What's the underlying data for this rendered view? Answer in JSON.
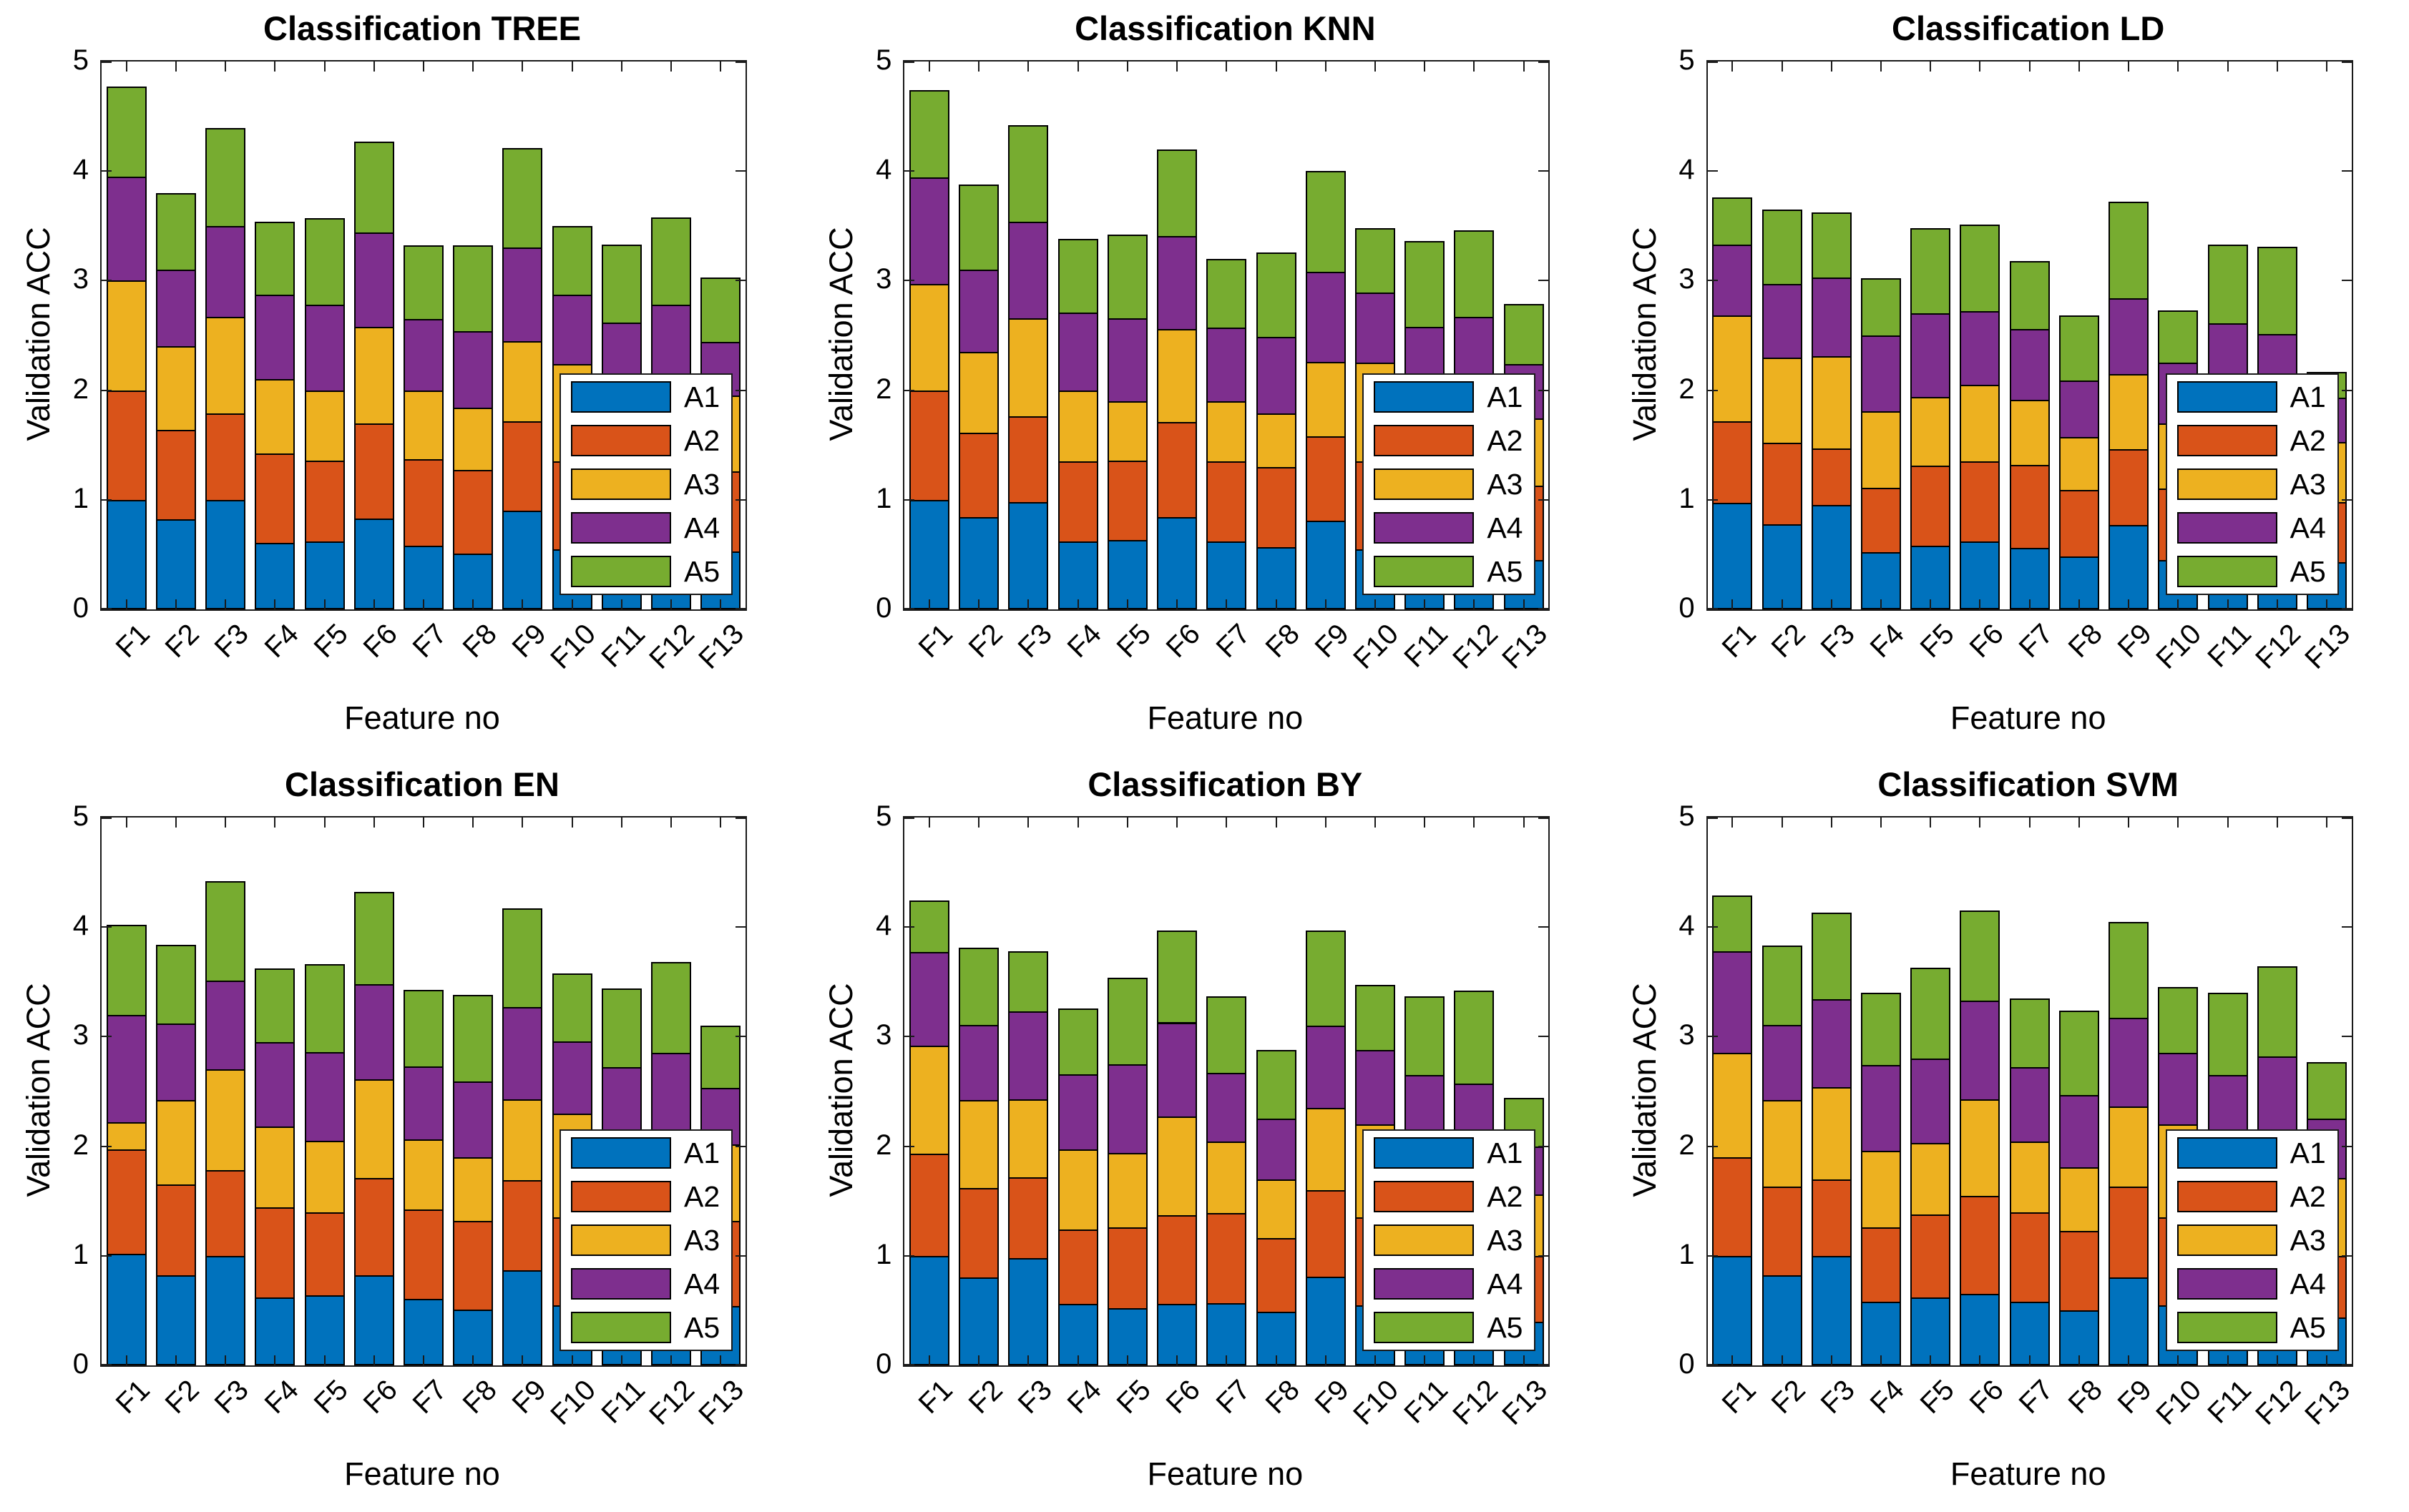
{
  "figure": {
    "background": "#ffffff",
    "series_colors": [
      "#0072BD",
      "#D95319",
      "#EDB120",
      "#7E2F8E",
      "#77AC30"
    ],
    "bar_edge_color": "#000000",
    "axis_color": "#1a1a1a",
    "yticks": [
      0,
      1,
      2,
      3,
      4,
      5
    ],
    "legend_labels": [
      "A1",
      "A2",
      "A3",
      "A4",
      "A5"
    ]
  },
  "chart_data": [
    {
      "type": "bar",
      "stacked": true,
      "grid": false,
      "title": "Classification TREE",
      "xlabel": "Feature no",
      "ylabel": "Validation ACC",
      "ylim": [
        0,
        5
      ],
      "legend_position": "lower-right",
      "categories": [
        "F1",
        "F2",
        "F3",
        "F4",
        "F5",
        "F6",
        "F7",
        "F8",
        "F9",
        "F10",
        "F11",
        "F12",
        "F13"
      ],
      "series": [
        {
          "name": "A1",
          "values": [
            1.0,
            0.82,
            1.0,
            0.61,
            0.62,
            0.83,
            0.58,
            0.51,
            0.9,
            0.55,
            0.52,
            0.55,
            0.53
          ]
        },
        {
          "name": "A2",
          "values": [
            1.0,
            0.82,
            0.79,
            0.81,
            0.74,
            0.87,
            0.79,
            0.76,
            0.82,
            0.8,
            0.78,
            0.8,
            0.73
          ]
        },
        {
          "name": "A3",
          "values": [
            1.0,
            0.76,
            0.88,
            0.68,
            0.64,
            0.88,
            0.63,
            0.57,
            0.73,
            0.89,
            0.65,
            0.7,
            0.69
          ]
        },
        {
          "name": "A4",
          "values": [
            0.95,
            0.7,
            0.83,
            0.77,
            0.78,
            0.86,
            0.65,
            0.7,
            0.85,
            0.63,
            0.67,
            0.73,
            0.49
          ]
        },
        {
          "name": "A5",
          "values": [
            0.82,
            0.7,
            0.89,
            0.67,
            0.79,
            0.83,
            0.67,
            0.78,
            0.91,
            0.63,
            0.71,
            0.8,
            0.59
          ]
        }
      ]
    },
    {
      "type": "bar",
      "stacked": true,
      "grid": false,
      "title": "Classification KNN",
      "xlabel": "Feature no",
      "ylabel": "Validation ACC",
      "ylim": [
        0,
        5
      ],
      "legend_position": "lower-right",
      "categories": [
        "F1",
        "F2",
        "F3",
        "F4",
        "F5",
        "F6",
        "F7",
        "F8",
        "F9",
        "F10",
        "F11",
        "F12",
        "F13"
      ],
      "series": [
        {
          "name": "A1",
          "values": [
            1.0,
            0.84,
            0.98,
            0.62,
            0.63,
            0.84,
            0.62,
            0.57,
            0.81,
            0.55,
            0.52,
            0.55,
            0.45
          ]
        },
        {
          "name": "A2",
          "values": [
            1.0,
            0.77,
            0.78,
            0.73,
            0.73,
            0.87,
            0.73,
            0.73,
            0.77,
            0.8,
            0.78,
            0.8,
            0.68
          ]
        },
        {
          "name": "A3",
          "values": [
            0.97,
            0.74,
            0.9,
            0.65,
            0.54,
            0.85,
            0.55,
            0.49,
            0.68,
            0.9,
            0.65,
            0.7,
            0.61
          ]
        },
        {
          "name": "A4",
          "values": [
            0.97,
            0.75,
            0.88,
            0.71,
            0.76,
            0.85,
            0.67,
            0.7,
            0.82,
            0.64,
            0.63,
            0.62,
            0.5
          ]
        },
        {
          "name": "A5",
          "values": [
            0.8,
            0.78,
            0.88,
            0.67,
            0.76,
            0.79,
            0.63,
            0.77,
            0.92,
            0.59,
            0.78,
            0.79,
            0.55
          ]
        }
      ]
    },
    {
      "type": "bar",
      "stacked": true,
      "grid": false,
      "title": "Classification LD",
      "xlabel": "Feature no",
      "ylabel": "Validation ACC",
      "ylim": [
        0,
        5
      ],
      "legend_position": "lower-right",
      "categories": [
        "F1",
        "F2",
        "F3",
        "F4",
        "F5",
        "F6",
        "F7",
        "F8",
        "F9",
        "F10",
        "F11",
        "F12",
        "F13"
      ],
      "series": [
        {
          "name": "A1",
          "values": [
            0.97,
            0.78,
            0.95,
            0.52,
            0.58,
            0.62,
            0.56,
            0.48,
            0.77,
            0.45,
            0.52,
            0.5,
            0.43
          ]
        },
        {
          "name": "A2",
          "values": [
            0.75,
            0.74,
            0.52,
            0.59,
            0.73,
            0.73,
            0.76,
            0.61,
            0.69,
            0.65,
            0.76,
            0.75,
            0.55
          ]
        },
        {
          "name": "A3",
          "values": [
            0.96,
            0.78,
            0.84,
            0.7,
            0.63,
            0.7,
            0.59,
            0.48,
            0.69,
            0.6,
            0.62,
            0.65,
            0.55
          ]
        },
        {
          "name": "A4",
          "values": [
            0.65,
            0.67,
            0.72,
            0.69,
            0.76,
            0.67,
            0.65,
            0.52,
            0.69,
            0.55,
            0.71,
            0.61,
            0.4
          ]
        },
        {
          "name": "A5",
          "values": [
            0.43,
            0.68,
            0.59,
            0.52,
            0.78,
            0.79,
            0.62,
            0.59,
            0.88,
            0.48,
            0.72,
            0.8,
            0.24
          ]
        }
      ]
    },
    {
      "type": "bar",
      "stacked": true,
      "grid": false,
      "title": "Classification EN",
      "xlabel": "Feature no",
      "ylabel": "Validation ACC",
      "ylim": [
        0,
        5
      ],
      "legend_position": "lower-right",
      "categories": [
        "F1",
        "F2",
        "F3",
        "F4",
        "F5",
        "F6",
        "F7",
        "F8",
        "F9",
        "F10",
        "F11",
        "F12",
        "F13"
      ],
      "series": [
        {
          "name": "A1",
          "values": [
            1.02,
            0.82,
            1.0,
            0.62,
            0.64,
            0.82,
            0.61,
            0.51,
            0.87,
            0.55,
            0.52,
            0.55,
            0.54
          ]
        },
        {
          "name": "A2",
          "values": [
            0.95,
            0.83,
            0.78,
            0.82,
            0.76,
            0.89,
            0.81,
            0.81,
            0.82,
            0.8,
            0.78,
            0.83,
            0.78
          ]
        },
        {
          "name": "A3",
          "values": [
            0.25,
            0.77,
            0.92,
            0.74,
            0.65,
            0.9,
            0.64,
            0.58,
            0.74,
            0.95,
            0.7,
            0.72,
            0.7
          ]
        },
        {
          "name": "A4",
          "values": [
            0.98,
            0.7,
            0.81,
            0.77,
            0.81,
            0.87,
            0.67,
            0.69,
            0.84,
            0.66,
            0.72,
            0.75,
            0.51
          ]
        },
        {
          "name": "A5",
          "values": [
            0.82,
            0.72,
            0.91,
            0.67,
            0.8,
            0.84,
            0.7,
            0.79,
            0.9,
            0.62,
            0.72,
            0.83,
            0.57
          ]
        }
      ]
    },
    {
      "type": "bar",
      "stacked": true,
      "grid": false,
      "title": "Classification BY",
      "xlabel": "Feature no",
      "ylabel": "Validation ACC",
      "ylim": [
        0,
        5
      ],
      "legend_position": "lower-right",
      "categories": [
        "F1",
        "F2",
        "F3",
        "F4",
        "F5",
        "F6",
        "F7",
        "F8",
        "F9",
        "F10",
        "F11",
        "F12",
        "F13"
      ],
      "series": [
        {
          "name": "A1",
          "values": [
            1.0,
            0.8,
            0.98,
            0.56,
            0.52,
            0.56,
            0.57,
            0.49,
            0.81,
            0.55,
            0.52,
            0.52,
            0.4
          ]
        },
        {
          "name": "A2",
          "values": [
            0.93,
            0.82,
            0.74,
            0.68,
            0.74,
            0.81,
            0.82,
            0.67,
            0.79,
            0.8,
            0.78,
            0.8,
            0.6
          ]
        },
        {
          "name": "A3",
          "values": [
            0.99,
            0.8,
            0.71,
            0.73,
            0.68,
            0.9,
            0.65,
            0.54,
            0.75,
            0.85,
            0.65,
            0.68,
            0.56
          ]
        },
        {
          "name": "A4",
          "values": [
            0.85,
            0.69,
            0.8,
            0.69,
            0.81,
            0.86,
            0.63,
            0.55,
            0.75,
            0.68,
            0.7,
            0.57,
            0.44
          ]
        },
        {
          "name": "A5",
          "values": [
            0.47,
            0.7,
            0.55,
            0.6,
            0.79,
            0.84,
            0.7,
            0.63,
            0.87,
            0.59,
            0.72,
            0.85,
            0.44
          ]
        }
      ]
    },
    {
      "type": "bar",
      "stacked": true,
      "grid": false,
      "title": "Classification SVM",
      "xlabel": "Feature no",
      "ylabel": "Validation ACC",
      "ylim": [
        0,
        5
      ],
      "legend_position": "lower-right",
      "categories": [
        "F1",
        "F2",
        "F3",
        "F4",
        "F5",
        "F6",
        "F7",
        "F8",
        "F9",
        "F10",
        "F11",
        "F12",
        "F13"
      ],
      "series": [
        {
          "name": "A1",
          "values": [
            1.0,
            0.82,
            1.0,
            0.58,
            0.62,
            0.65,
            0.58,
            0.5,
            0.8,
            0.55,
            0.52,
            0.55,
            0.44
          ]
        },
        {
          "name": "A2",
          "values": [
            0.9,
            0.81,
            0.7,
            0.68,
            0.76,
            0.9,
            0.82,
            0.73,
            0.83,
            0.8,
            0.78,
            0.8,
            0.56
          ]
        },
        {
          "name": "A3",
          "values": [
            0.95,
            0.79,
            0.84,
            0.7,
            0.65,
            0.88,
            0.64,
            0.58,
            0.73,
            0.85,
            0.68,
            0.7,
            0.71
          ]
        },
        {
          "name": "A4",
          "values": [
            0.93,
            0.69,
            0.8,
            0.78,
            0.77,
            0.9,
            0.68,
            0.66,
            0.81,
            0.65,
            0.67,
            0.77,
            0.54
          ]
        },
        {
          "name": "A5",
          "values": [
            0.51,
            0.72,
            0.79,
            0.66,
            0.83,
            0.82,
            0.63,
            0.77,
            0.88,
            0.6,
            0.75,
            0.82,
            0.52
          ]
        }
      ]
    }
  ]
}
